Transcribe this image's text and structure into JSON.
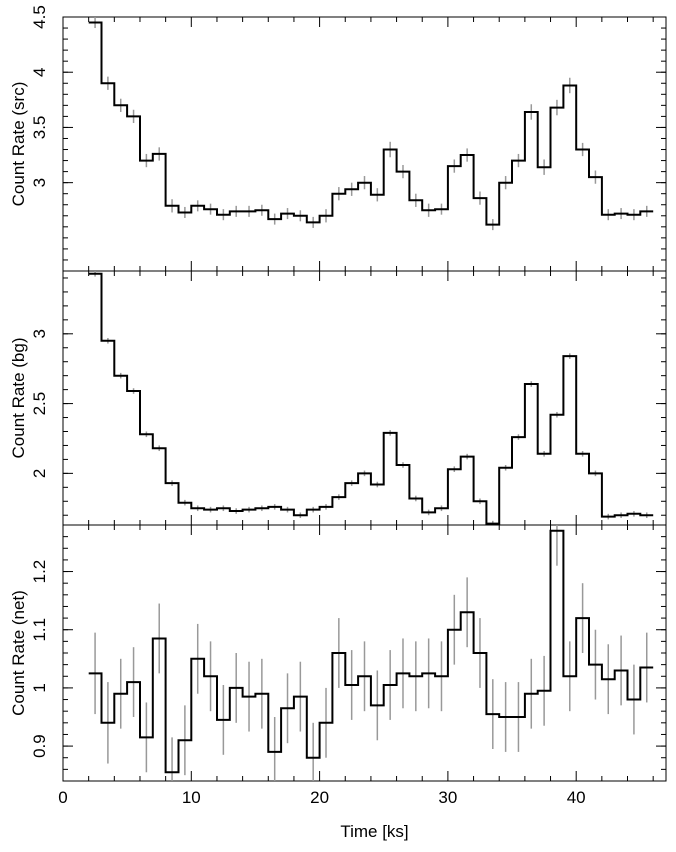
{
  "chart_data": {
    "type": "line",
    "style": "step",
    "x_axis": {
      "label": "Time [ks]",
      "range": [
        0,
        47
      ],
      "ticks": [
        0,
        10,
        20,
        30,
        40
      ],
      "tick_labels": [
        "0",
        "10",
        "20",
        "30",
        "40"
      ]
    },
    "panels": [
      {
        "ylabel": "Count Rate (src)",
        "ylim": [
          2.2,
          4.5
        ],
        "yticks": [
          3,
          3.5,
          4,
          4.5
        ],
        "ytick_labels": [
          "3",
          "3.5",
          "4",
          "4.5"
        ],
        "series": {
          "x": [
            2.5,
            3.5,
            4.5,
            5.5,
            6.5,
            7.5,
            8.5,
            9.5,
            10.5,
            11.5,
            12.5,
            13.5,
            14.5,
            15.5,
            16.5,
            17.5,
            18.5,
            19.5,
            20.5,
            21.5,
            22.5,
            23.5,
            24.5,
            25.5,
            26.5,
            27.5,
            28.5,
            29.5,
            30.5,
            31.5,
            32.5,
            33.5,
            34.5,
            35.5,
            36.5,
            37.5,
            38.5,
            39.5,
            40.5,
            41.5,
            42.5,
            43.5,
            44.5,
            45.5
          ],
          "y": [
            4.45,
            3.9,
            3.7,
            3.6,
            3.2,
            3.26,
            2.79,
            2.73,
            2.79,
            2.76,
            2.71,
            2.74,
            2.74,
            2.75,
            2.67,
            2.72,
            2.7,
            2.64,
            2.7,
            2.9,
            2.94,
            3,
            2.89,
            3.3,
            3.1,
            2.84,
            2.75,
            2.76,
            3.15,
            3.25,
            2.86,
            2.62,
            3,
            3.2,
            3.64,
            3.14,
            3.68,
            3.88,
            3.3,
            3.05,
            2.71,
            2.72,
            2.71,
            2.74
          ],
          "err": [
            0.05,
            0.06,
            0.06,
            0.06,
            0.06,
            0.06,
            0.06,
            0.05,
            0.05,
            0.05,
            0.05,
            0.05,
            0.05,
            0.05,
            0.05,
            0.05,
            0.05,
            0.05,
            0.06,
            0.06,
            0.06,
            0.06,
            0.06,
            0.07,
            0.06,
            0.06,
            0.06,
            0.05,
            0.06,
            0.06,
            0.06,
            0.05,
            0.06,
            0.06,
            0.07,
            0.07,
            0.07,
            0.07,
            0.06,
            0.06,
            0.05,
            0.05,
            0.05,
            0.05
          ]
        }
      },
      {
        "ylabel": "Count Rate (bg)",
        "ylim": [
          1.63,
          3.45
        ],
        "yticks": [
          2,
          2.5,
          3
        ],
        "ytick_labels": [
          "2",
          "2.5",
          "3"
        ],
        "series": {
          "x": [
            2.5,
            3.5,
            4.5,
            5.5,
            6.5,
            7.5,
            8.5,
            9.5,
            10.5,
            11.5,
            12.5,
            13.5,
            14.5,
            15.5,
            16.5,
            17.5,
            18.5,
            19.5,
            20.5,
            21.5,
            22.5,
            23.5,
            24.5,
            25.5,
            26.5,
            27.5,
            28.5,
            29.5,
            30.5,
            31.5,
            32.5,
            33.5,
            34.5,
            35.5,
            36.5,
            37.5,
            38.5,
            39.5,
            40.5,
            41.5,
            42.5,
            43.5,
            44.5,
            45.5
          ],
          "y": [
            3.43,
            2.95,
            2.7,
            2.59,
            2.28,
            2.18,
            1.93,
            1.79,
            1.75,
            1.74,
            1.75,
            1.73,
            1.74,
            1.75,
            1.76,
            1.74,
            1.7,
            1.74,
            1.76,
            1.83,
            1.93,
            2,
            1.92,
            2.29,
            2.06,
            1.82,
            1.72,
            1.75,
            2.03,
            2.12,
            1.8,
            1.64,
            2.04,
            2.26,
            2.64,
            2.14,
            2.42,
            2.84,
            2.14,
            2,
            1.69,
            1.7,
            1.71,
            1.7
          ],
          "err": [
            0.02,
            0.02,
            0.02,
            0.02,
            0.02,
            0.02,
            0.02,
            0.02,
            0.02,
            0.02,
            0.02,
            0.02,
            0.02,
            0.02,
            0.02,
            0.02,
            0.02,
            0.02,
            0.02,
            0.02,
            0.02,
            0.02,
            0.02,
            0.02,
            0.02,
            0.02,
            0.02,
            0.02,
            0.02,
            0.02,
            0.02,
            0.02,
            0.02,
            0.02,
            0.02,
            0.02,
            0.02,
            0.02,
            0.02,
            0.02,
            0.02,
            0.02,
            0.02,
            0.02
          ]
        }
      },
      {
        "ylabel": "Count Rate (net)",
        "ylim": [
          0.84,
          1.28
        ],
        "yticks": [
          0.9,
          1,
          1.1,
          1.2
        ],
        "ytick_labels": [
          "0.9",
          "1",
          "1.1",
          "1.2"
        ],
        "series": {
          "x": [
            2.5,
            3.5,
            4.5,
            5.5,
            6.5,
            7.5,
            8.5,
            9.5,
            10.5,
            11.5,
            12.5,
            13.5,
            14.5,
            15.5,
            16.5,
            17.5,
            18.5,
            19.5,
            20.5,
            21.5,
            22.5,
            23.5,
            24.5,
            25.5,
            26.5,
            27.5,
            28.5,
            29.5,
            30.5,
            31.5,
            32.5,
            33.5,
            34.5,
            35.5,
            36.5,
            37.5,
            38.5,
            39.5,
            40.5,
            41.5,
            42.5,
            43.5,
            44.5,
            45.5
          ],
          "y": [
            1.025,
            0.94,
            0.99,
            1.01,
            0.915,
            1.085,
            0.855,
            0.91,
            1.05,
            1.02,
            0.945,
            1,
            0.985,
            0.99,
            0.89,
            0.965,
            0.985,
            0.88,
            0.94,
            1.06,
            1.005,
            1.02,
            0.97,
            1.005,
            1.025,
            1.02,
            1.025,
            1.02,
            1.1,
            1.13,
            1.06,
            0.955,
            0.95,
            0.95,
            0.99,
            0.995,
            1.27,
            1.02,
            1.12,
            1.04,
            1.015,
            1.03,
            0.98,
            1.035
          ],
          "err": [
            0.07,
            0.07,
            0.06,
            0.06,
            0.06,
            0.06,
            0.06,
            0.06,
            0.06,
            0.06,
            0.06,
            0.06,
            0.06,
            0.06,
            0.06,
            0.06,
            0.06,
            0.06,
            0.06,
            0.06,
            0.06,
            0.06,
            0.06,
            0.06,
            0.06,
            0.06,
            0.06,
            0.06,
            0.06,
            0.06,
            0.06,
            0.06,
            0.06,
            0.06,
            0.06,
            0.06,
            0.06,
            0.06,
            0.06,
            0.06,
            0.06,
            0.06,
            0.06,
            0.06
          ]
        }
      }
    ],
    "colors": {
      "step_line": "#000000",
      "error_bars": "#999999"
    }
  }
}
